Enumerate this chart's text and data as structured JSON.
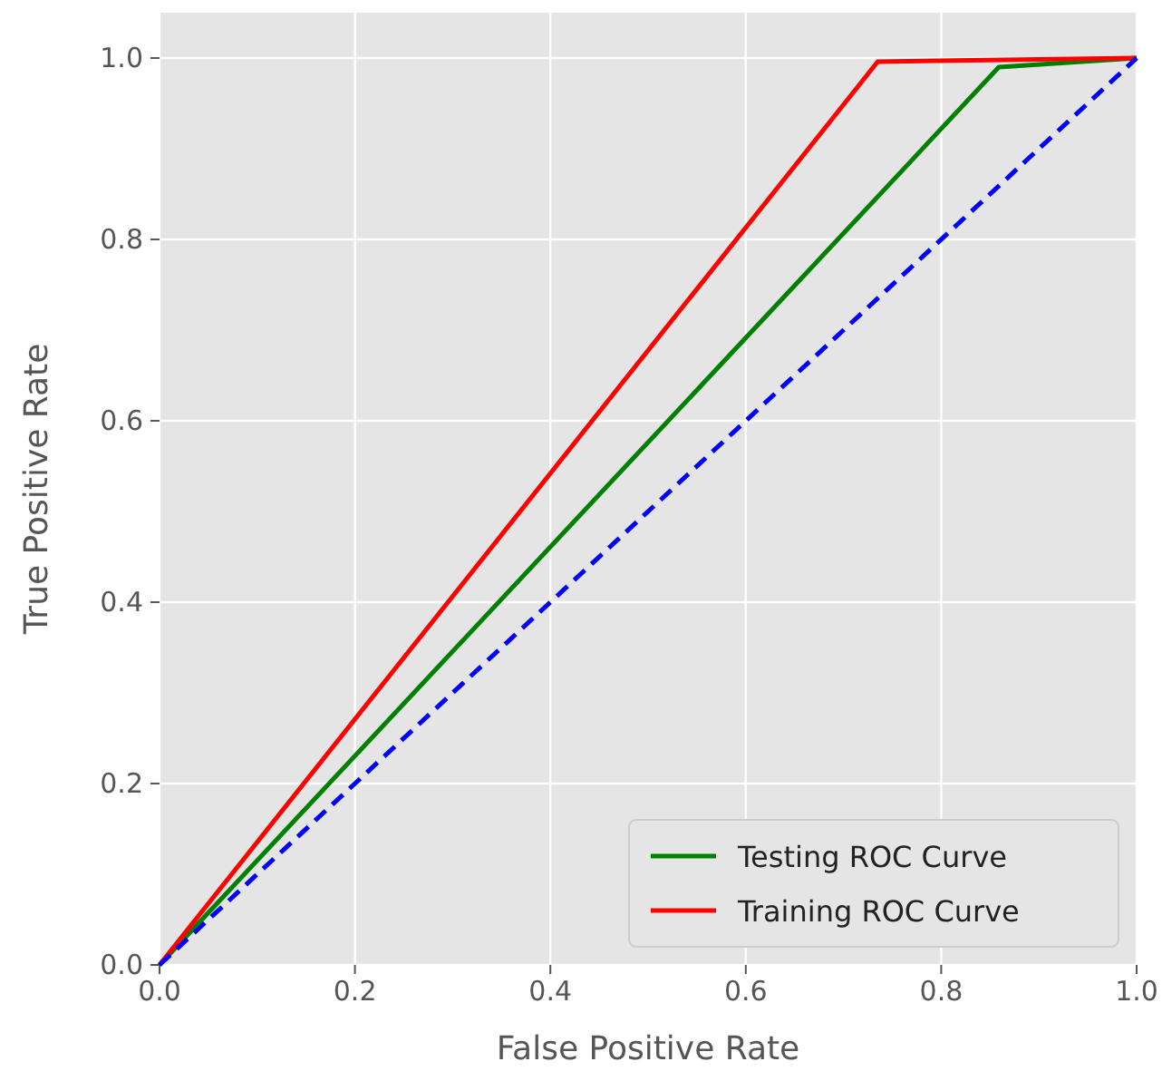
{
  "chart_data": {
    "type": "line",
    "xlabel": "False Positive Rate",
    "ylabel": "True Positive Rate",
    "xlim": [
      0,
      1
    ],
    "ylim": [
      0,
      1.05
    ],
    "xticks": [
      {
        "value": 0,
        "label": "0.0"
      },
      0.2,
      0.4,
      0.6,
      0.8,
      {
        "value": 1,
        "label": "1.0"
      }
    ],
    "yticks": [
      {
        "value": 0,
        "label": "0.0"
      },
      0.2,
      0.4,
      0.6,
      0.8,
      {
        "value": 1,
        "label": "1.0"
      }
    ],
    "grid": true,
    "legend": "bottom right",
    "marker": "none",
    "series": [
      {
        "name": "Testing ROC Curve",
        "color": "#008000",
        "x": [
          0,
          0.859,
          1
        ],
        "values": [
          0,
          0.99,
          1
        ],
        "line_style": "solid"
      },
      {
        "name": "Training ROC Curve",
        "color": "#ff0000",
        "x": [
          0,
          0.735,
          1
        ],
        "values": [
          0,
          0.996,
          1
        ],
        "line_style": "solid"
      },
      {
        "color": "#0000ff",
        "x": [
          0,
          1
        ],
        "values": [
          0,
          1
        ],
        "line_style": "dashed"
      }
    ]
  }
}
